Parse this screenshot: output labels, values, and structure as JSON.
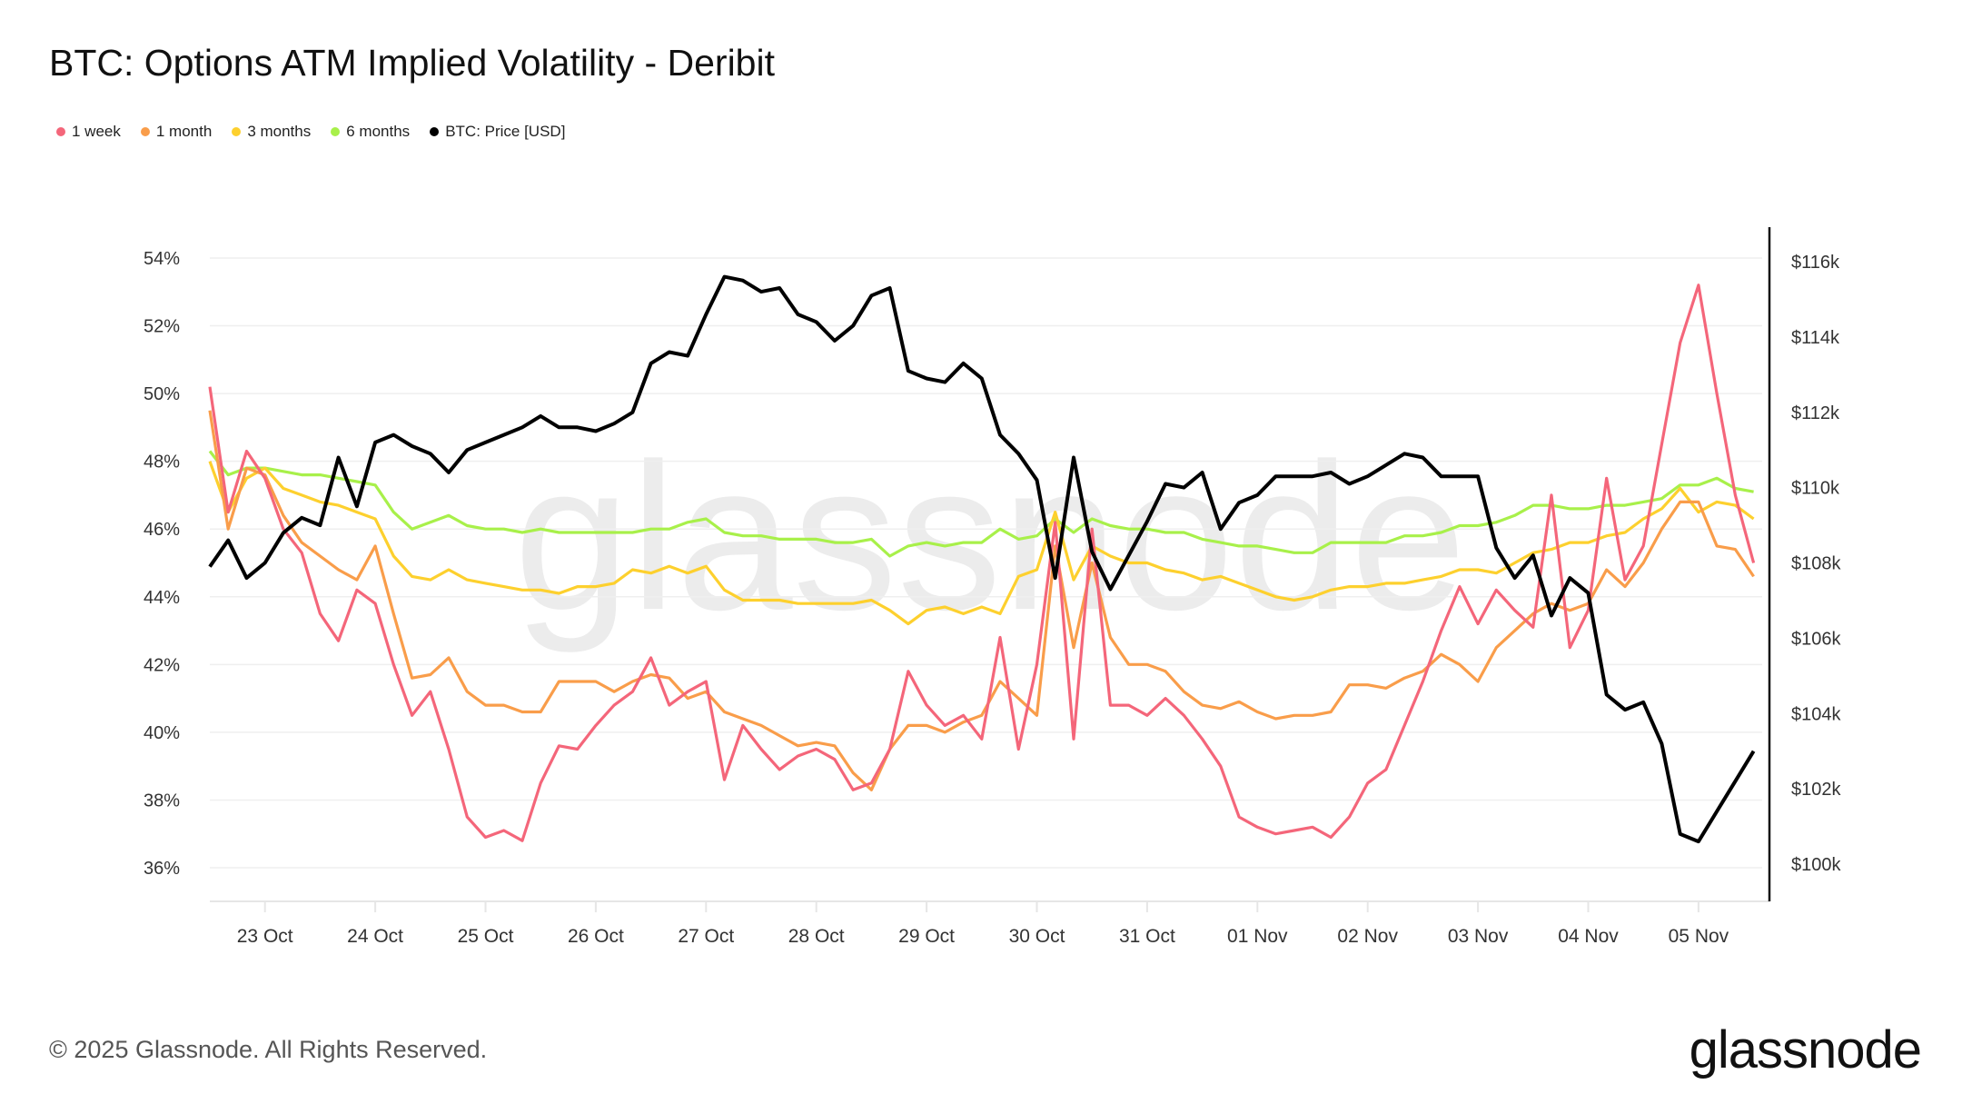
{
  "header": {
    "title": "BTC: Options ATM Implied Volatility - Deribit"
  },
  "footer": {
    "copyright": "© 2025 Glassnode. All Rights Reserved.",
    "logo_text": "glassnode"
  },
  "watermark": "glassnode",
  "chart_data": {
    "type": "line",
    "title": "BTC: Options ATM Implied Volatility - Deribit",
    "x_start": "2025-10-22 12:00",
    "x_step_hours": 4,
    "x_tick_labels": [
      "23 Oct",
      "24 Oct",
      "25 Oct",
      "26 Oct",
      "27 Oct",
      "28 Oct",
      "29 Oct",
      "30 Oct",
      "31 Oct",
      "01 Nov",
      "02 Nov",
      "03 Nov",
      "04 Nov",
      "05 Nov"
    ],
    "y_left": {
      "range": [
        35,
        55
      ],
      "ticks": [
        36,
        38,
        40,
        42,
        44,
        46,
        48,
        50,
        52,
        54
      ],
      "tick_labels": [
        "36%",
        "38%",
        "40%",
        "42%",
        "44%",
        "46%",
        "48%",
        "50%",
        "52%",
        "54%"
      ]
    },
    "y_right": {
      "range": [
        99.1,
        117
      ],
      "ticks": [
        100,
        102,
        104,
        106,
        108,
        110,
        112,
        114,
        116
      ],
      "tick_labels": [
        "$100k",
        "$102k",
        "$104k",
        "$106k",
        "$108k",
        "$110k",
        "$112k",
        "$114k",
        "$116k"
      ]
    },
    "grid": true,
    "legend_position": "top-left",
    "series": [
      {
        "name": "1 week",
        "axis": "left",
        "color": "#f4667a",
        "values": [
          50.2,
          46.5,
          48.3,
          47.5,
          46.0,
          45.3,
          43.5,
          42.7,
          44.2,
          43.8,
          42.0,
          40.5,
          41.2,
          39.5,
          37.5,
          36.9,
          37.1,
          36.8,
          38.5,
          39.6,
          39.5,
          40.2,
          40.8,
          41.2,
          42.2,
          40.8,
          41.2,
          41.5,
          38.6,
          40.2,
          39.5,
          38.9,
          39.3,
          39.5,
          39.2,
          38.3,
          38.5,
          39.5,
          41.8,
          40.8,
          40.2,
          40.5,
          39.8,
          42.8,
          39.5,
          42.0,
          46.2,
          39.8,
          46.0,
          40.8,
          40.8,
          40.5,
          41.0,
          40.5,
          39.8,
          39.0,
          37.5,
          37.2,
          37.0,
          37.1,
          37.2,
          36.9,
          37.5,
          38.5,
          38.9,
          40.2,
          41.5,
          43.0,
          44.3,
          43.2,
          44.2,
          43.6,
          43.1,
          47.0,
          42.5,
          43.6,
          47.5,
          44.5,
          45.5,
          48.5,
          51.5,
          53.2,
          50.0,
          47.0,
          45.0
        ]
      },
      {
        "name": "1 month",
        "axis": "left",
        "color": "#f99d4a",
        "values": [
          49.5,
          46.0,
          47.8,
          47.6,
          46.4,
          45.6,
          45.2,
          44.8,
          44.5,
          45.5,
          43.5,
          41.6,
          41.7,
          42.2,
          41.2,
          40.8,
          40.8,
          40.6,
          40.6,
          41.5,
          41.5,
          41.5,
          41.2,
          41.5,
          41.7,
          41.6,
          41.0,
          41.2,
          40.6,
          40.4,
          40.2,
          39.9,
          39.6,
          39.7,
          39.6,
          38.8,
          38.3,
          39.5,
          40.2,
          40.2,
          40.0,
          40.3,
          40.5,
          41.5,
          41.0,
          40.5,
          45.5,
          42.5,
          45.0,
          42.8,
          42.0,
          42.0,
          41.8,
          41.2,
          40.8,
          40.7,
          40.9,
          40.6,
          40.4,
          40.5,
          40.5,
          40.6,
          41.4,
          41.4,
          41.3,
          41.6,
          41.8,
          42.3,
          42.0,
          41.5,
          42.5,
          43.0,
          43.5,
          43.8,
          43.6,
          43.8,
          44.8,
          44.3,
          45.0,
          46.0,
          46.8,
          46.8,
          45.5,
          45.4,
          44.6
        ]
      },
      {
        "name": "3 months",
        "axis": "left",
        "color": "#fdd02e",
        "values": [
          48.0,
          46.5,
          47.5,
          47.8,
          47.2,
          47.0,
          46.8,
          46.7,
          46.5,
          46.3,
          45.2,
          44.6,
          44.5,
          44.8,
          44.5,
          44.4,
          44.3,
          44.2,
          44.2,
          44.1,
          44.3,
          44.3,
          44.4,
          44.8,
          44.7,
          44.9,
          44.7,
          44.9,
          44.2,
          43.9,
          43.9,
          43.9,
          43.8,
          43.8,
          43.8,
          43.8,
          43.9,
          43.6,
          43.2,
          43.6,
          43.7,
          43.5,
          43.7,
          43.5,
          44.6,
          44.8,
          46.5,
          44.5,
          45.5,
          45.2,
          45.0,
          45.0,
          44.8,
          44.7,
          44.5,
          44.6,
          44.4,
          44.2,
          44.0,
          43.9,
          44.0,
          44.2,
          44.3,
          44.3,
          44.4,
          44.4,
          44.5,
          44.6,
          44.8,
          44.8,
          44.7,
          45.0,
          45.3,
          45.4,
          45.6,
          45.6,
          45.8,
          45.9,
          46.3,
          46.6,
          47.2,
          46.5,
          46.8,
          46.7,
          46.3
        ]
      },
      {
        "name": "6 months",
        "axis": "left",
        "color": "#a8f04a",
        "values": [
          48.3,
          47.6,
          47.8,
          47.8,
          47.7,
          47.6,
          47.6,
          47.5,
          47.4,
          47.3,
          46.5,
          46.0,
          46.2,
          46.4,
          46.1,
          46.0,
          46.0,
          45.9,
          46.0,
          45.9,
          45.9,
          45.9,
          45.9,
          45.9,
          46.0,
          46.0,
          46.2,
          46.3,
          45.9,
          45.8,
          45.8,
          45.7,
          45.7,
          45.7,
          45.6,
          45.6,
          45.7,
          45.2,
          45.5,
          45.6,
          45.5,
          45.6,
          45.6,
          46.0,
          45.7,
          45.8,
          46.3,
          45.9,
          46.3,
          46.1,
          46.0,
          46.0,
          45.9,
          45.9,
          45.7,
          45.6,
          45.5,
          45.5,
          45.4,
          45.3,
          45.3,
          45.6,
          45.6,
          45.6,
          45.6,
          45.8,
          45.8,
          45.9,
          46.1,
          46.1,
          46.2,
          46.4,
          46.7,
          46.7,
          46.6,
          46.6,
          46.7,
          46.7,
          46.8,
          46.9,
          47.3,
          47.3,
          47.5,
          47.2,
          47.1
        ]
      },
      {
        "name": "BTC: Price [USD]",
        "axis": "right",
        "unit": "k USD",
        "color": "#000000",
        "values": [
          107.9,
          108.6,
          107.6,
          108.0,
          108.8,
          109.2,
          109.0,
          110.8,
          109.5,
          111.2,
          111.4,
          111.1,
          110.9,
          110.4,
          111.0,
          111.2,
          111.4,
          111.6,
          111.9,
          111.6,
          111.6,
          111.5,
          111.7,
          112.0,
          113.3,
          113.6,
          113.5,
          114.6,
          115.6,
          115.5,
          115.2,
          115.3,
          114.6,
          114.4,
          113.9,
          114.3,
          115.1,
          115.3,
          113.1,
          112.9,
          112.8,
          113.3,
          112.9,
          111.4,
          110.9,
          110.2,
          107.6,
          110.8,
          108.3,
          107.3,
          108.2,
          109.1,
          110.1,
          110.0,
          110.4,
          108.9,
          109.6,
          109.8,
          110.3,
          110.3,
          110.3,
          110.4,
          110.1,
          110.3,
          110.6,
          110.9,
          110.8,
          110.3,
          110.3,
          110.3,
          108.4,
          107.6,
          108.2,
          106.6,
          107.6,
          107.2,
          104.5,
          104.1,
          104.3,
          103.2,
          100.8,
          100.6,
          101.4,
          102.2,
          103.0
        ]
      }
    ]
  }
}
